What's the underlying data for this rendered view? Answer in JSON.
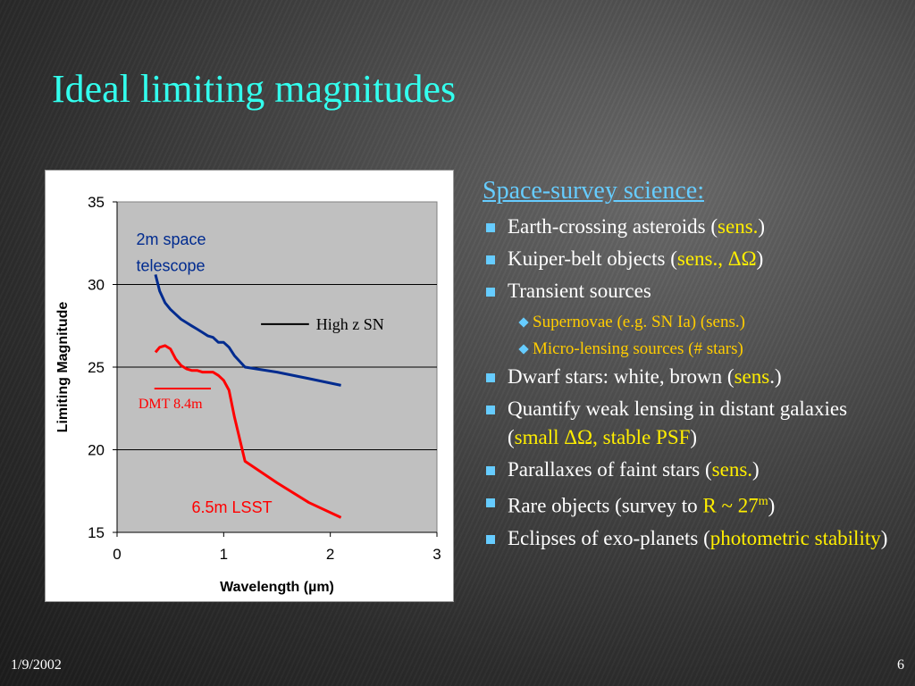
{
  "slide": {
    "title": "Ideal limiting magnitudes",
    "footer_date": "1/9/2002",
    "page_number": "6"
  },
  "colors": {
    "title": "#33ffee",
    "heading": "#66ccff",
    "highlight": "#ffee00",
    "sub_bullet": "#ffcc00",
    "telescope_curve": "#002b8f",
    "lsst_curve": "#ff0000",
    "plot_bg": "#c0c0c0"
  },
  "chart_data": {
    "type": "line",
    "xlabel": "Wavelength (µm)",
    "ylabel": "Limiting Magnitude",
    "xlim": [
      0,
      3
    ],
    "ylim": [
      15,
      35
    ],
    "xticks": [
      0,
      1,
      2,
      3
    ],
    "yticks": [
      15,
      20,
      25,
      30,
      35
    ],
    "grid": "horizontal",
    "series": [
      {
        "name": "2m space telescope",
        "color": "#002b8f",
        "x": [
          0.36,
          0.4,
          0.45,
          0.5,
          0.55,
          0.6,
          0.65,
          0.7,
          0.75,
          0.8,
          0.85,
          0.9,
          0.95,
          1.0,
          1.05,
          1.1,
          1.2,
          1.5,
          1.8,
          2.1
        ],
        "y": [
          30.6,
          29.6,
          28.9,
          28.5,
          28.2,
          27.9,
          27.7,
          27.5,
          27.3,
          27.1,
          26.9,
          26.8,
          26.5,
          26.5,
          26.2,
          25.7,
          25.0,
          24.7,
          24.3,
          23.9
        ]
      },
      {
        "name": "6.5m LSST",
        "color": "#ff0000",
        "x": [
          0.36,
          0.4,
          0.45,
          0.5,
          0.55,
          0.6,
          0.65,
          0.7,
          0.75,
          0.8,
          0.85,
          0.9,
          0.95,
          1.0,
          1.05,
          1.1,
          1.2,
          1.5,
          1.8,
          2.1
        ],
        "y": [
          25.9,
          26.2,
          26.3,
          26.1,
          25.5,
          25.1,
          24.9,
          24.8,
          24.8,
          24.7,
          24.7,
          24.7,
          24.5,
          24.2,
          23.6,
          22.0,
          19.3,
          18.0,
          16.8,
          15.9
        ]
      }
    ],
    "annotations": [
      {
        "text": "2m space telescope",
        "line1": "2m space",
        "line2": "telescope",
        "color": "#002b8f"
      },
      {
        "text": "6.5m LSST",
        "color": "#ff0000"
      },
      {
        "text": "High z SN",
        "color": "#000000",
        "marker_x": [
          1.35,
          1.8
        ],
        "marker_y": 27.6
      },
      {
        "text": "DMT 8.4m",
        "color": "#ff0000",
        "marker_x": [
          0.35,
          0.88
        ],
        "marker_y": 23.7
      }
    ]
  },
  "panel": {
    "heading": "Space-survey science:",
    "bullets": [
      {
        "pre": "Earth-crossing asteroids (",
        "hl": "sens.",
        "post": ")"
      },
      {
        "pre": "Kuiper-belt objects (",
        "hl": "sens., ΔΩ",
        "post": ")"
      },
      {
        "pre": "Transient sources",
        "hl": "",
        "post": ""
      },
      {
        "pre": "Dwarf stars: white, brown (",
        "hl": "sens",
        "post": ".)"
      },
      {
        "pre": "Quantify weak lensing in distant galaxies (",
        "hl": "small ΔΩ, stable PSF",
        "post": ")"
      },
      {
        "pre": "Parallaxes of faint stars (",
        "hl": "sens.",
        "post": ")"
      },
      {
        "pre": "Rare objects (survey to ",
        "hl": "R ~ 27",
        "sup": "m",
        "post": ")"
      },
      {
        "pre": "Eclipses of exo-planets (",
        "hl": "photometric stability",
        "post": ")"
      }
    ],
    "sub_bullets": [
      "Supernovae (e.g. SN Ia) (sens.)",
      "Micro-lensing sources (# stars)"
    ]
  }
}
